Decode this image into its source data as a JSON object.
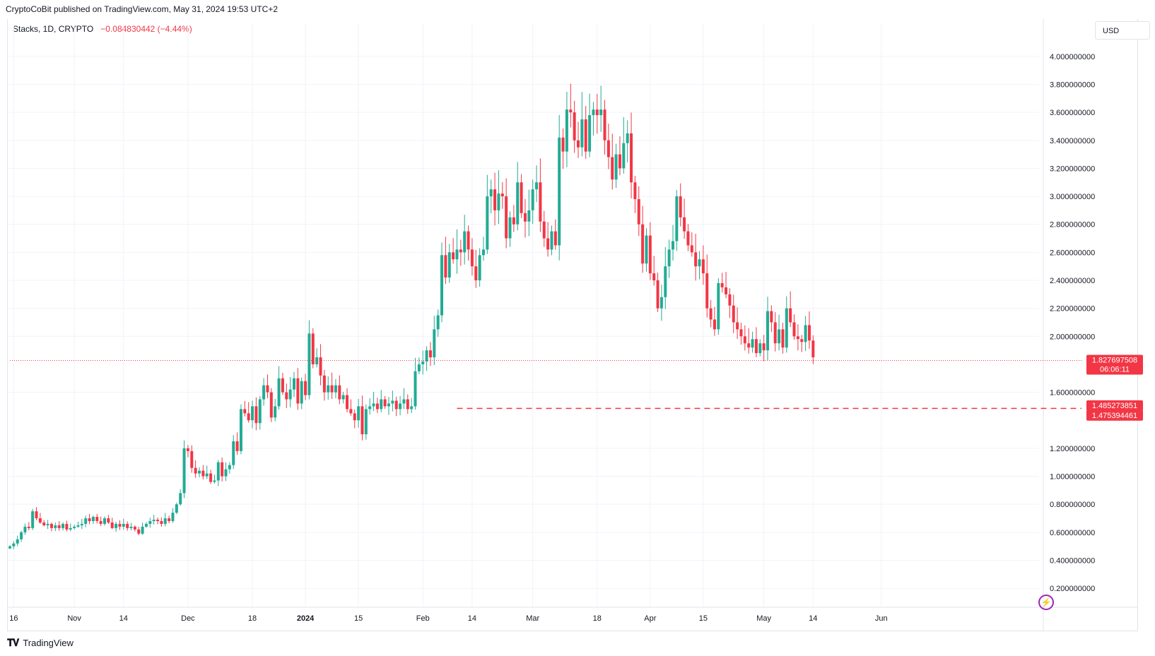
{
  "header": {
    "published": "CryptoCoBit published on TradingView.com, May 31, 2024 19:53 UTC+2"
  },
  "legend": {
    "symbol": "Stacks, 1D, CRYPTO",
    "change": "−0.084830442 (−4.44%)"
  },
  "currency": "USD",
  "footer": {
    "brand": "TradingView",
    "logo_icon": "tradingview-logo-icon"
  },
  "colors": {
    "up": "#22ab94",
    "down": "#f23645",
    "grid": "#f0f3fa",
    "text": "#131722"
  },
  "chart_data": {
    "type": "candlestick",
    "ylim": [
      0.14,
      4.1
    ],
    "y_ticks": [
      "4.000000000",
      "3.800000000",
      "3.600000000",
      "3.400000000",
      "3.200000000",
      "3.000000000",
      "2.800000000",
      "2.600000000",
      "2.400000000",
      "2.200000000",
      "2.000000000",
      "1.600000000",
      "1.200000000",
      "1.000000000",
      "0.800000000",
      "0.600000000",
      "0.400000000",
      "0.200000000"
    ],
    "y_tick_values": [
      4.0,
      3.8,
      3.6,
      3.4,
      3.2,
      3.0,
      2.8,
      2.6,
      2.4,
      2.2,
      2.0,
      1.6,
      1.2,
      1.0,
      0.8,
      0.6,
      0.4,
      0.2
    ],
    "x_ticks": [
      {
        "label": "16",
        "date": "2023-10-16",
        "bold": false
      },
      {
        "label": "Nov",
        "date": "2023-11-01",
        "bold": false
      },
      {
        "label": "14",
        "date": "2023-11-14",
        "bold": false
      },
      {
        "label": "Dec",
        "date": "2023-12-01",
        "bold": false
      },
      {
        "label": "18",
        "date": "2023-12-18",
        "bold": false
      },
      {
        "label": "2024",
        "date": "2024-01-01",
        "bold": true
      },
      {
        "label": "15",
        "date": "2024-01-15",
        "bold": false
      },
      {
        "label": "Feb",
        "date": "2024-02-01",
        "bold": false
      },
      {
        "label": "14",
        "date": "2024-02-14",
        "bold": false
      },
      {
        "label": "Mar",
        "date": "2024-03-01",
        "bold": false
      },
      {
        "label": "18",
        "date": "2024-03-18",
        "bold": false
      },
      {
        "label": "Apr",
        "date": "2024-04-01",
        "bold": false
      },
      {
        "label": "15",
        "date": "2024-04-15",
        "bold": false
      },
      {
        "label": "May",
        "date": "2024-05-01",
        "bold": false
      },
      {
        "label": "14",
        "date": "2024-05-14",
        "bold": false
      },
      {
        "label": "Jun",
        "date": "2024-06-01",
        "bold": false
      }
    ],
    "start_date": "2023-10-15",
    "close_series": [
      0.5,
      0.52,
      0.55,
      0.6,
      0.64,
      0.63,
      0.75,
      0.7,
      0.67,
      0.65,
      0.66,
      0.63,
      0.65,
      0.63,
      0.66,
      0.62,
      0.63,
      0.64,
      0.65,
      0.66,
      0.7,
      0.68,
      0.71,
      0.68,
      0.66,
      0.7,
      0.67,
      0.63,
      0.66,
      0.64,
      0.66,
      0.63,
      0.64,
      0.62,
      0.59,
      0.64,
      0.66,
      0.68,
      0.69,
      0.68,
      0.66,
      0.7,
      0.68,
      0.74,
      0.8,
      0.88,
      1.2,
      1.18,
      1.06,
      1.02,
      1.04,
      1.0,
      1.02,
      0.96,
      0.97,
      1.1,
      1.0,
      1.05,
      1.08,
      1.25,
      1.18,
      1.48,
      1.45,
      1.4,
      1.5,
      1.38,
      1.55,
      1.65,
      1.6,
      1.42,
      1.5,
      1.7,
      1.6,
      1.55,
      1.62,
      1.7,
      1.52,
      1.68,
      1.58,
      2.02,
      1.8,
      1.85,
      1.72,
      1.6,
      1.65,
      1.6,
      1.65,
      1.55,
      1.58,
      1.48,
      1.45,
      1.4,
      1.5,
      1.3,
      1.48,
      1.5,
      1.52,
      1.48,
      1.55,
      1.5,
      1.52,
      1.54,
      1.48,
      1.52,
      1.55,
      1.48,
      1.5,
      1.75,
      1.8,
      1.82,
      1.9,
      1.85,
      2.05,
      2.15,
      2.58,
      2.42,
      2.6,
      2.55,
      2.62,
      2.6,
      2.75,
      2.62,
      2.5,
      2.4,
      2.58,
      2.62,
      3.0,
      3.05,
      2.9,
      3.02,
      3.0,
      2.7,
      2.85,
      2.8,
      3.1,
      2.88,
      2.82,
      2.9,
      3.05,
      3.1,
      2.82,
      2.7,
      2.62,
      2.75,
      2.65,
      3.42,
      3.32,
      3.62,
      3.6,
      3.4,
      3.35,
      3.55,
      3.32,
      3.58,
      3.62,
      3.58,
      3.62,
      3.4,
      3.28,
      3.12,
      3.3,
      3.2,
      3.38,
      3.45,
      3.1,
      2.98,
      2.8,
      2.52,
      2.72,
      2.45,
      2.4,
      2.2,
      2.28,
      2.5,
      2.62,
      2.68,
      3.0,
      2.85,
      2.75,
      2.65,
      2.6,
      2.5,
      2.55,
      2.45,
      2.2,
      2.12,
      2.05,
      2.38,
      2.35,
      2.3,
      2.22,
      2.1,
      2.05,
      2.0,
      1.95,
      1.92,
      1.98,
      1.88,
      1.95,
      1.9,
      2.18,
      2.1,
      1.95,
      2.05,
      1.92,
      2.2,
      2.1,
      2.0,
      1.98,
      1.96,
      2.08,
      1.97,
      1.85
    ]
  },
  "price_tags": [
    {
      "value": 1.827697508,
      "text": "1.827697508",
      "sub": "06:06:11",
      "bg": "#f23645"
    },
    {
      "value": 1.485273851,
      "text": "1.485273851",
      "sub": "",
      "bg": "#f23645"
    },
    {
      "value": 1.475394461,
      "text": "1.475394461",
      "sub": "",
      "bg": "#f23645"
    }
  ],
  "lines": [
    {
      "value": 1.827697508,
      "style": "dotted",
      "color": "#f23645",
      "from_date": "2023-10-15"
    },
    {
      "value": 1.485273851,
      "style": "dashed",
      "color": "#f23645",
      "from_date": "2024-02-10"
    }
  ]
}
